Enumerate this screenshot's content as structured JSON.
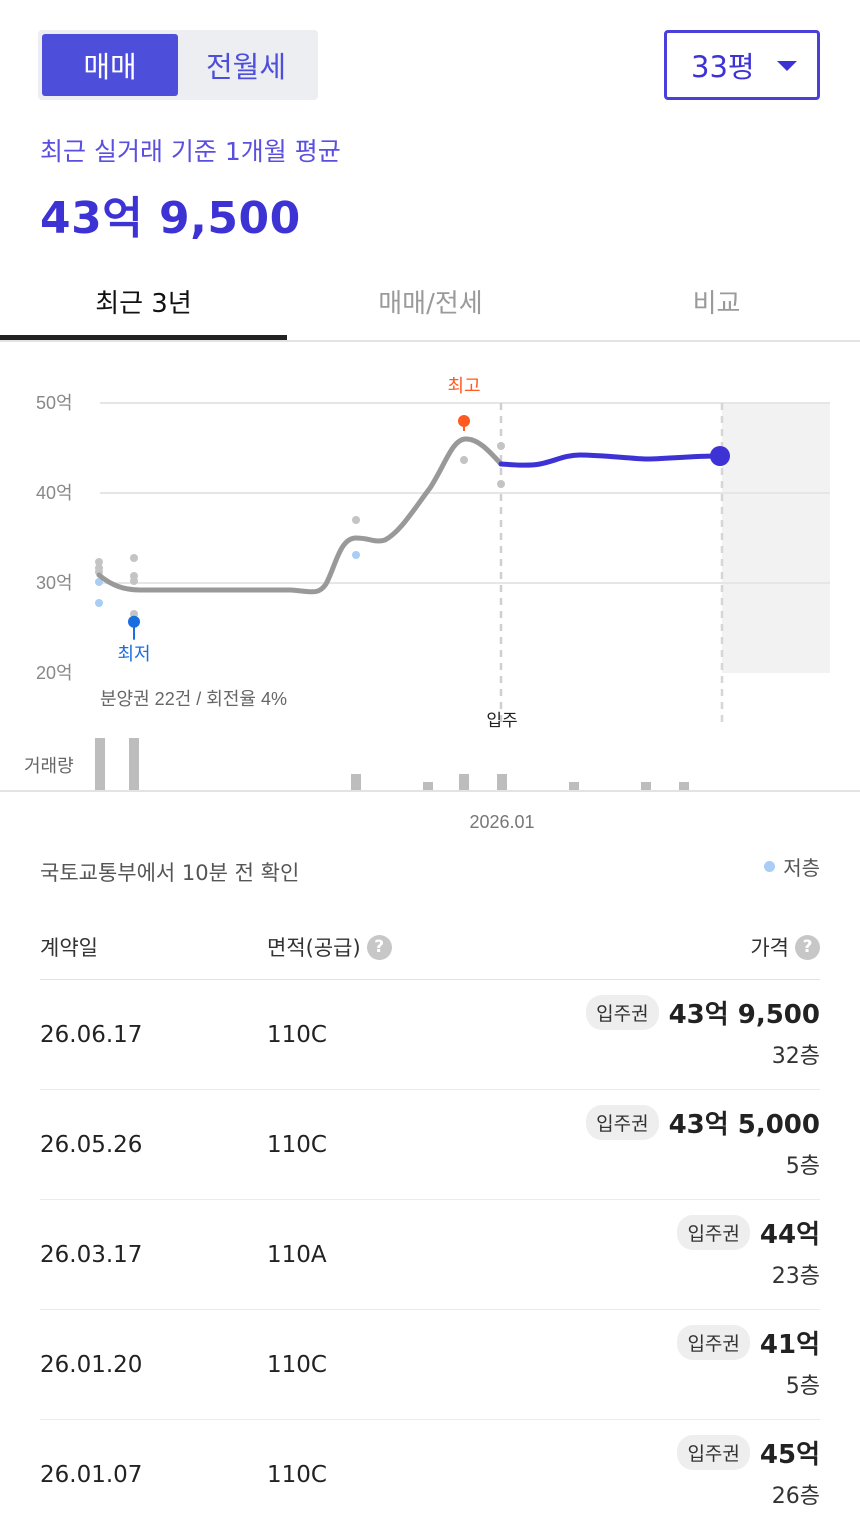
{
  "segment": {
    "sale": "매매",
    "rent": "전월세"
  },
  "size_select": {
    "value": "33평"
  },
  "summary": {
    "subtitle": "최근 실거래 기준 1개월 평균",
    "price": "43억 9,500"
  },
  "tabs": [
    "최근 3년",
    "매매/전세",
    "비교"
  ],
  "colors": {
    "accent": "#4d4fdb",
    "accent_dark": "#3d33d4",
    "high": "#ff5a1f",
    "low": "#1a6fe0",
    "low_floor": "#a9cdf3",
    "trend": "#999999"
  },
  "chart": {
    "y_labels": [
      "50억",
      "40억",
      "30억",
      "20억"
    ],
    "y_ticks": [
      50,
      40,
      30,
      20
    ],
    "high_label": "최고",
    "low_label": "최저",
    "high_value": 48,
    "low_value": 25.7,
    "presale_note": "분양권 22건 / 회전율 4%",
    "movein_label": "입주",
    "volume_label": "거래량",
    "x_label": "2026.01"
  },
  "update_note": "국토교통부에서 10분 전 확인",
  "legend": {
    "low_floor": "저층"
  },
  "table": {
    "headers": {
      "date": "계약일",
      "area": "면적(공급)",
      "price": "가격",
      "help": "?"
    },
    "rows": [
      {
        "date": "26.06.17",
        "area": "110C",
        "badge": "입주권",
        "price": "43억 9,500",
        "floor": "32층"
      },
      {
        "date": "26.05.26",
        "area": "110C",
        "badge": "입주권",
        "price": "43억 5,000",
        "floor": "5층"
      },
      {
        "date": "26.03.17",
        "area": "110A",
        "badge": "입주권",
        "price": "44억",
        "floor": "23층"
      },
      {
        "date": "26.01.20",
        "area": "110C",
        "badge": "입주권",
        "price": "41억",
        "floor": "5층"
      },
      {
        "date": "26.01.07",
        "area": "110C",
        "badge": "입주권",
        "price": "45억",
        "floor": "26층"
      }
    ]
  }
}
